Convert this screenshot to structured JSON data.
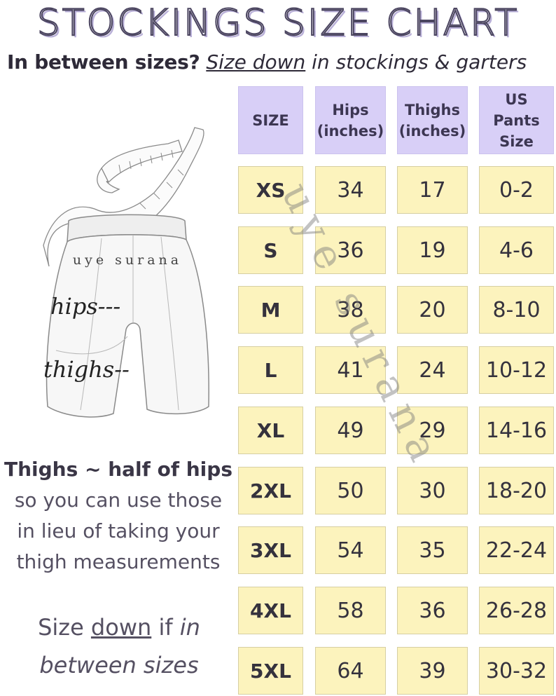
{
  "title": "STOCKINGS SIZE CHART",
  "subtitle": {
    "lead": "In between sizes?",
    "emph": "Size down",
    "rest": "in stockings & garters"
  },
  "illustration": {
    "brand": "uye surana",
    "hips_label": "hips---",
    "thighs_label": "thighs--"
  },
  "watermark": "uye surana",
  "note": {
    "headline": "Thighs ~ half of hips",
    "line1": "so you can use those",
    "line2": "in lieu of taking your",
    "line3": "thigh measurements"
  },
  "bottom_note": {
    "p1": "Size ",
    "p2": "down",
    "p3": " if ",
    "p4": "in",
    "p5": "between sizes"
  },
  "chart_data": {
    "type": "table",
    "title": "STOCKINGS SIZE CHART",
    "columns": [
      {
        "line1": "SIZE",
        "line2": ""
      },
      {
        "line1": "Hips",
        "line2": "(inches)"
      },
      {
        "line1": "Thighs",
        "line2": "(inches)"
      },
      {
        "line1": "US Pants",
        "line2": "Size"
      }
    ],
    "rows": [
      [
        "XS",
        "34",
        "17",
        "0-2"
      ],
      [
        "S",
        "36",
        "19",
        "4-6"
      ],
      [
        "M",
        "38",
        "20",
        "8-10"
      ],
      [
        "L",
        "41",
        "24",
        "10-12"
      ],
      [
        "XL",
        "49",
        "29",
        "14-16"
      ],
      [
        "2XL",
        "50",
        "30",
        "18-20"
      ],
      [
        "3XL",
        "54",
        "35",
        "22-24"
      ],
      [
        "4XL",
        "58",
        "36",
        "26-28"
      ],
      [
        "5XL",
        "64",
        "39",
        "30-32"
      ]
    ],
    "colors": {
      "header": "#d8cff7",
      "cell": "#fcf3bd"
    }
  }
}
